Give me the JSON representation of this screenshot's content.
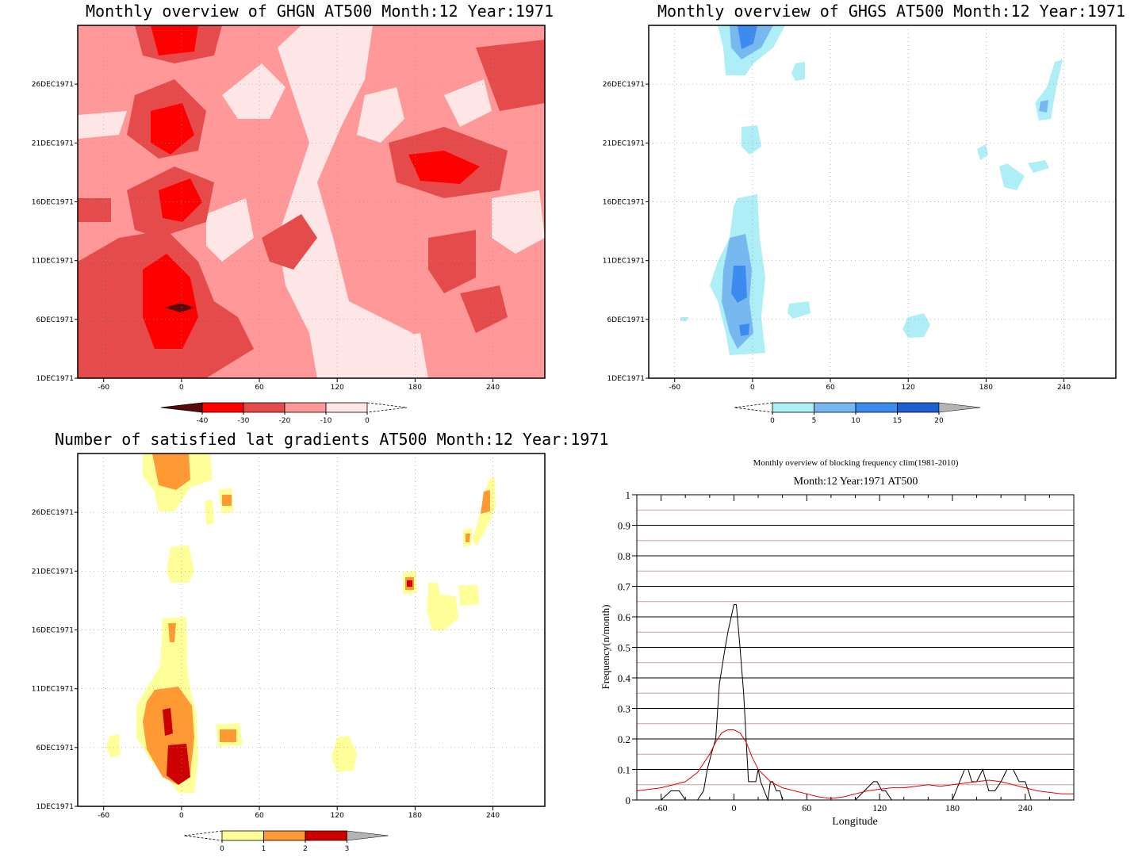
{
  "panels": {
    "ghgn": {
      "title": "Monthly overview of GHGN AT500 Month:12 Year:1971",
      "colorbar": {
        "labels": [
          "-40",
          "-30",
          "-20",
          "-10",
          "0"
        ],
        "colors": [
          "#5a0a0a",
          "#ff0000",
          "#e64b4b",
          "#ff9999",
          "#ffe6e6"
        ]
      }
    },
    "ghgs": {
      "title": "Monthly overview of GHGS AT500 Month:12 Year:1971",
      "colorbar": {
        "labels": [
          "0",
          "5",
          "10",
          "15",
          "20"
        ],
        "colors": [
          "#aeeef6",
          "#78b8f0",
          "#3c8cf0",
          "#1e5fd2",
          "#b4b4b4"
        ]
      }
    },
    "lat": {
      "title": "Number of satisfied lat gradients AT500 Month:12 Year:1971",
      "colorbar": {
        "labels": [
          "0",
          "1",
          "2",
          "3"
        ],
        "colors": [
          "#ffff99",
          "#ff9933",
          "#cc0000",
          "#b4b4b4"
        ]
      }
    },
    "freq": {
      "title": "Monthly overview of blocking frequency clim(1981-2010)",
      "subtitle": "Month:12 Year:1971  AT500"
    }
  },
  "shared_axes": {
    "x_ticks": [
      "-60",
      "0",
      "60",
      "120",
      "180",
      "240"
    ],
    "y_ticks": [
      "1DEC1971",
      "6DEC1971",
      "11DEC1971",
      "16DEC1971",
      "21DEC1971",
      "26DEC1971"
    ]
  },
  "chart_data": [
    {
      "type": "heatmap",
      "title": "Monthly overview of GHGN AT500 Month:12 Year:1971",
      "x_ticks": [
        -60,
        0,
        60,
        120,
        180,
        240
      ],
      "y_ticks": [
        "1DEC1971",
        "6DEC1971",
        "11DEC1971",
        "16DEC1971",
        "21DEC1971",
        "26DEC1971"
      ],
      "xlim": [
        -80,
        280
      ],
      "color_levels": [
        -40,
        -30,
        -20,
        -10,
        0
      ],
      "features": [
        {
          "lon": -5,
          "day": 7,
          "value": -40
        },
        {
          "lon": -10,
          "day": 9,
          "value": -30
        },
        {
          "lon": -10,
          "day": 23,
          "value": -30
        },
        {
          "lon": 190,
          "day": 20,
          "value": -30
        },
        {
          "lon": 0,
          "day": 30,
          "value": -30
        },
        {
          "lon": -10,
          "day": 16,
          "value": -30
        },
        {
          "lon": 130,
          "day": 12,
          "value": 0
        },
        {
          "lon": 40,
          "day": 24,
          "value": 0
        },
        {
          "lon": 60,
          "day": 14,
          "value": 0
        }
      ]
    },
    {
      "type": "heatmap",
      "title": "Monthly overview of GHGS AT500 Month:12 Year:1971",
      "x_ticks": [
        -60,
        0,
        60,
        120,
        180,
        240
      ],
      "y_ticks": [
        "1DEC1971",
        "6DEC1971",
        "11DEC1971",
        "16DEC1971",
        "21DEC1971",
        "26DEC1971"
      ],
      "xlim": [
        -80,
        280
      ],
      "color_levels": [
        0,
        5,
        10,
        15,
        20
      ],
      "features": [
        {
          "lon": -10,
          "day": 9,
          "value": 15
        },
        {
          "lon": -5,
          "day": 5,
          "value": 10
        },
        {
          "lon": -5,
          "day": 30,
          "value": 15
        },
        {
          "lon": 225,
          "day": 24,
          "value": 10
        },
        {
          "lon": 125,
          "day": 6,
          "value": 5
        },
        {
          "lon": 220,
          "day": 19,
          "value": 5
        },
        {
          "lon": 30,
          "day": 7,
          "value": 5
        }
      ]
    },
    {
      "type": "heatmap",
      "title": "Number of satisfied lat gradients AT500 Month:12 Year:1971",
      "x_ticks": [
        -60,
        0,
        60,
        120,
        180,
        240
      ],
      "y_ticks": [
        "1DEC1971",
        "6DEC1971",
        "11DEC1971",
        "16DEC1971",
        "21DEC1971",
        "26DEC1971"
      ],
      "xlim": [
        -80,
        280
      ],
      "color_levels": [
        0,
        1,
        2,
        3
      ],
      "features": [
        {
          "lon": -5,
          "day": 4,
          "value": 3
        },
        {
          "lon": -10,
          "day": 8,
          "value": 3
        },
        {
          "lon": 175,
          "day": 20,
          "value": 3
        },
        {
          "lon": -15,
          "day": 30,
          "value": 2
        },
        {
          "lon": 35,
          "day": 27,
          "value": 2
        },
        {
          "lon": 235,
          "day": 27,
          "value": 2
        },
        {
          "lon": 35,
          "day": 7,
          "value": 2
        },
        {
          "lon": 125,
          "day": 5,
          "value": 1
        },
        {
          "lon": -55,
          "day": 6,
          "value": 1
        }
      ]
    },
    {
      "type": "line",
      "title": "Monthly overview of blocking frequency clim(1981-2010)",
      "subtitle": "Month:12 Year:1971  AT500",
      "xlabel": "Longitude",
      "ylabel": "Frequency(n/month)",
      "xlim": [
        -80,
        280
      ],
      "ylim": [
        0,
        1
      ],
      "x_ticks": [
        -60,
        0,
        60,
        120,
        180,
        240
      ],
      "y_ticks": [
        0,
        0.1,
        0.2,
        0.3,
        0.4,
        0.5,
        0.6,
        0.7,
        0.8,
        0.9,
        1
      ],
      "series": [
        {
          "color": "#000000",
          "x": [
            -80,
            -60,
            -52,
            -45,
            -40,
            -35,
            -30,
            -25,
            -22,
            -18,
            -15,
            -12,
            -8,
            -5,
            0,
            2,
            5,
            8,
            10,
            12,
            15,
            18,
            20,
            22,
            25,
            28,
            30,
            32,
            35,
            38,
            40,
            45,
            50,
            60,
            80,
            100,
            115,
            118,
            122,
            125,
            130,
            140,
            150,
            160,
            170,
            180,
            190,
            193,
            196,
            200,
            205,
            210,
            215,
            220,
            225,
            230,
            235,
            240,
            245,
            250,
            280
          ],
          "y": [
            0,
            0,
            0.03,
            0.03,
            0,
            0,
            0,
            0.03,
            0.1,
            0.16,
            0.2,
            0.38,
            0.48,
            0.55,
            0.64,
            0.64,
            0.5,
            0.35,
            0.2,
            0.06,
            0.06,
            0.06,
            0.1,
            0.06,
            0.03,
            0,
            0.06,
            0.06,
            0.03,
            0.03,
            0,
            0,
            0,
            0,
            0,
            0,
            0.06,
            0.06,
            0.03,
            0.03,
            0,
            0,
            0,
            0,
            0,
            0,
            0.1,
            0.1,
            0.06,
            0.06,
            0.1,
            0.03,
            0.03,
            0.06,
            0.1,
            0.1,
            0.06,
            0.06,
            0,
            0,
            0
          ]
        },
        {
          "color": "#e60000",
          "x": [
            -80,
            -60,
            -40,
            -30,
            -20,
            -15,
            -10,
            -5,
            0,
            5,
            10,
            15,
            20,
            30,
            40,
            50,
            60,
            70,
            80,
            90,
            100,
            110,
            120,
            130,
            140,
            150,
            160,
            170,
            180,
            190,
            200,
            210,
            220,
            230,
            240,
            250,
            260,
            270,
            280
          ],
          "y": [
            0.03,
            0.04,
            0.06,
            0.09,
            0.15,
            0.19,
            0.22,
            0.23,
            0.23,
            0.22,
            0.19,
            0.14,
            0.1,
            0.06,
            0.04,
            0.03,
            0.02,
            0.01,
            0.005,
            0.01,
            0.02,
            0.03,
            0.035,
            0.04,
            0.04,
            0.045,
            0.05,
            0.045,
            0.05,
            0.055,
            0.06,
            0.065,
            0.06,
            0.05,
            0.04,
            0.03,
            0.025,
            0.02,
            0.02
          ]
        }
      ],
      "reference_lines": {
        "black_at": [
          0.1,
          0.2,
          0.3,
          0.4,
          0.5,
          0.6,
          0.7,
          0.8,
          0.9
        ],
        "red_at": [
          0.05,
          0.15,
          0.25,
          0.35,
          0.45,
          0.55,
          0.65,
          0.75,
          0.85,
          0.95
        ]
      }
    }
  ]
}
